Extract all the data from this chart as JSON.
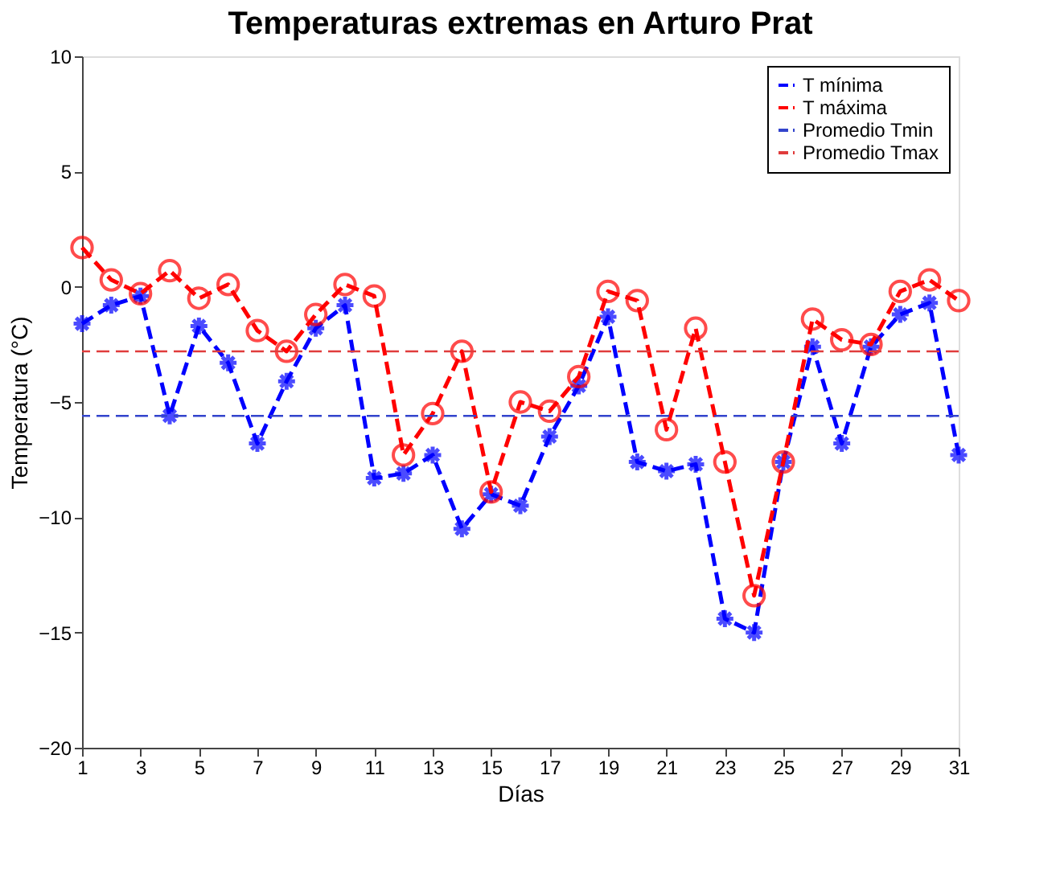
{
  "chart_data": {
    "type": "line",
    "title": "Temperaturas extremas en Arturo Prat",
    "xlabel": "Días",
    "ylabel": "Temperatura (°C)",
    "x": [
      1,
      2,
      3,
      4,
      5,
      6,
      7,
      8,
      9,
      10,
      11,
      12,
      13,
      14,
      15,
      16,
      17,
      18,
      19,
      20,
      21,
      22,
      23,
      24,
      25,
      26,
      27,
      28,
      29,
      30,
      31
    ],
    "series": [
      {
        "name": "T mínima",
        "color": "#0000ff",
        "marker": "cross",
        "line_style": "dashed",
        "values": [
          -1.6,
          -0.8,
          -0.4,
          -5.6,
          -1.7,
          -3.3,
          -6.8,
          -4.1,
          -1.8,
          -0.8,
          -8.3,
          -8.1,
          -7.3,
          -10.5,
          -9.0,
          -9.5,
          -6.5,
          -4.3,
          -1.3,
          -7.6,
          -8.0,
          -7.7,
          -14.4,
          -15.0,
          -7.6,
          -2.6,
          -6.8,
          -2.6,
          -1.2,
          -0.7,
          -7.3
        ]
      },
      {
        "name": "T máxima",
        "color": "#ff0000",
        "marker": "circle",
        "line_style": "dashed",
        "values": [
          1.7,
          0.3,
          -0.3,
          0.7,
          -0.5,
          0.1,
          -1.9,
          -2.8,
          -1.2,
          0.1,
          -0.4,
          -7.3,
          -5.5,
          -2.8,
          -8.9,
          -5.0,
          -5.4,
          -3.9,
          -0.2,
          -0.6,
          -6.2,
          -1.8,
          -7.6,
          -13.4,
          -7.6,
          -1.4,
          -2.3,
          -2.5,
          -0.2,
          0.3,
          -0.6
        ]
      }
    ],
    "ref_lines": [
      {
        "axis": "y",
        "value": -5.6,
        "label": "Promedio Tmin",
        "color": "#3344cc",
        "line_style": "dashed"
      },
      {
        "axis": "y",
        "value": -2.8,
        "label": "Promedio Tmax",
        "color": "#e03c3c",
        "line_style": "dashed"
      }
    ],
    "xlim": [
      1,
      31
    ],
    "xticks": [
      1,
      3,
      5,
      7,
      9,
      11,
      13,
      15,
      17,
      19,
      21,
      23,
      25,
      27,
      29,
      31
    ],
    "ylim": [
      -20,
      10
    ],
    "yticks": [
      -20,
      -15,
      -10,
      -5,
      0,
      5,
      10
    ],
    "grid": false,
    "legend": "top right"
  }
}
